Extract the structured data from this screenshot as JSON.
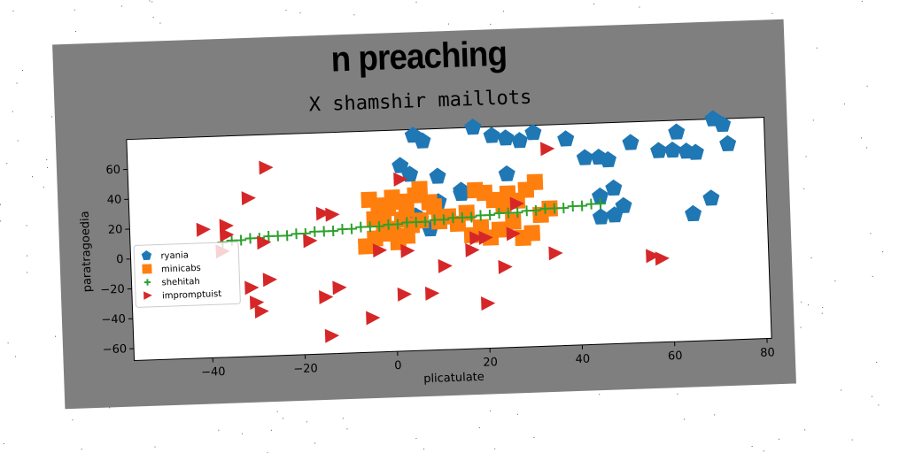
{
  "colors": {
    "ryania": "#1f77b4",
    "minicabs": "#ff7f0e",
    "shehitah": "#2ca02c",
    "impromptuist": "#d62728",
    "card": "#7f7f7f"
  },
  "chart_data": {
    "type": "scatter",
    "title": "n preaching",
    "subtitle": "X shamshir maillots",
    "xlabel": "plicatulate",
    "ylabel": "paratragoedia",
    "xlim": [
      -57,
      81
    ],
    "ylim": [
      -68,
      80
    ],
    "xticks": [
      -40,
      -20,
      0,
      20,
      40,
      60,
      80
    ],
    "yticks": [
      -60,
      -40,
      -20,
      0,
      20,
      40,
      60
    ],
    "xtick_labels": [
      "−40",
      "−20",
      "0",
      "20",
      "40",
      "60",
      "80"
    ],
    "ytick_labels": [
      "−60",
      "−40",
      "−20",
      "0",
      "20",
      "40",
      "60"
    ],
    "grid": false,
    "legend_position": "center-left",
    "series": [
      {
        "name": "ryania",
        "marker": "pentagon",
        "points": [
          [
            2,
            56
          ],
          [
            4,
            50
          ],
          [
            5,
            76
          ],
          [
            7,
            72
          ],
          [
            10,
            48
          ],
          [
            15,
            38
          ],
          [
            18,
            80
          ],
          [
            22,
            74
          ],
          [
            25,
            72
          ],
          [
            25,
            48
          ],
          [
            28,
            70
          ],
          [
            31,
            75
          ],
          [
            38,
            70
          ],
          [
            42,
            57
          ],
          [
            45,
            57
          ],
          [
            47,
            55
          ],
          [
            48,
            36
          ],
          [
            45,
            31
          ],
          [
            45,
            17
          ],
          [
            48,
            18
          ],
          [
            50,
            24
          ],
          [
            52,
            66
          ],
          [
            58,
            60
          ],
          [
            62,
            72
          ],
          [
            61,
            60
          ],
          [
            64,
            59
          ],
          [
            66,
            58
          ],
          [
            70,
            80
          ],
          [
            72,
            76
          ],
          [
            73,
            63
          ],
          [
            69,
            27
          ],
          [
            65,
            17
          ],
          [
            3,
            30
          ],
          [
            5,
            22
          ],
          [
            8,
            13
          ],
          [
            6,
            20
          ],
          [
            10,
            31
          ],
          [
            15,
            36
          ]
        ]
      },
      {
        "name": "minicabs",
        "marker": "square",
        "points": [
          [
            -5,
            34
          ],
          [
            -3,
            30
          ],
          [
            -1,
            28
          ],
          [
            0,
            35
          ],
          [
            2,
            32
          ],
          [
            3,
            27
          ],
          [
            5,
            36
          ],
          [
            6,
            40
          ],
          [
            8,
            31
          ],
          [
            9,
            28
          ],
          [
            -4,
            21
          ],
          [
            -2,
            18
          ],
          [
            0,
            14
          ],
          [
            2,
            20
          ],
          [
            4,
            16
          ],
          [
            6,
            19
          ],
          [
            -6,
            3
          ],
          [
            -4,
            8
          ],
          [
            -2,
            11
          ],
          [
            1,
            5
          ],
          [
            3,
            9
          ],
          [
            10,
            18
          ],
          [
            12,
            21
          ],
          [
            14,
            16
          ],
          [
            16,
            23
          ],
          [
            18,
            38
          ],
          [
            20,
            36
          ],
          [
            22,
            31
          ],
          [
            24,
            27
          ],
          [
            25,
            35
          ],
          [
            27,
            30
          ],
          [
            29,
            37
          ],
          [
            31,
            42
          ],
          [
            17,
            8
          ],
          [
            19,
            13
          ],
          [
            21,
            6
          ],
          [
            23,
            11
          ],
          [
            26,
            16
          ],
          [
            28,
            5
          ],
          [
            30,
            8
          ],
          [
            32,
            20
          ],
          [
            34,
            24
          ]
        ]
      },
      {
        "name": "shehitah",
        "marker": "plus",
        "points": [
          [
            -37,
            9
          ],
          [
            -35,
            10
          ],
          [
            -33,
            10
          ],
          [
            -31,
            11
          ],
          [
            -29,
            11
          ],
          [
            -27,
            12
          ],
          [
            -25,
            12
          ],
          [
            -23,
            12
          ],
          [
            -21,
            13
          ],
          [
            -19,
            13
          ],
          [
            -17,
            14
          ],
          [
            -15,
            14
          ],
          [
            -13,
            14
          ],
          [
            -11,
            15
          ],
          [
            -9,
            15
          ],
          [
            -7,
            16
          ],
          [
            -5,
            16
          ],
          [
            -3,
            16
          ],
          [
            -1,
            17
          ],
          [
            1,
            17
          ],
          [
            3,
            18
          ],
          [
            5,
            18
          ],
          [
            7,
            18
          ],
          [
            9,
            19
          ],
          [
            11,
            19
          ],
          [
            13,
            20
          ],
          [
            15,
            20
          ],
          [
            17,
            20
          ],
          [
            19,
            21
          ],
          [
            21,
            21
          ],
          [
            23,
            22
          ],
          [
            25,
            22
          ],
          [
            27,
            22
          ],
          [
            29,
            23
          ],
          [
            31,
            23
          ],
          [
            33,
            24
          ],
          [
            35,
            24
          ],
          [
            37,
            24
          ],
          [
            39,
            25
          ],
          [
            41,
            25
          ],
          [
            43,
            26
          ],
          [
            45,
            26
          ]
        ]
      },
      {
        "name": "impromptuist",
        "marker": "triangle-right",
        "points": [
          [
            -27,
            58
          ],
          [
            -31,
            38
          ],
          [
            -15,
            26
          ],
          [
            -13,
            25
          ],
          [
            -36,
            20
          ],
          [
            -41,
            18
          ],
          [
            -36,
            14
          ],
          [
            -28,
            8
          ],
          [
            -18,
            8
          ],
          [
            -37,
            3
          ],
          [
            -31,
            -22
          ],
          [
            -27,
            -17
          ],
          [
            -12,
            -24
          ],
          [
            -15,
            -30
          ],
          [
            -30,
            -32
          ],
          [
            -29,
            -38
          ],
          [
            -14,
            -56
          ],
          [
            -5,
            -45
          ],
          [
            2,
            -30
          ],
          [
            8,
            -30
          ],
          [
            11,
            -12
          ],
          [
            17,
            -2
          ],
          [
            18,
            6
          ],
          [
            20,
            6
          ],
          [
            26,
            8
          ],
          [
            27,
            28
          ],
          [
            24,
            -14
          ],
          [
            35,
            -6
          ],
          [
            34,
            64
          ],
          [
            2,
            47
          ],
          [
            -3,
            0
          ],
          [
            3,
            -1
          ],
          [
            56,
            -10
          ],
          [
            58,
            -12
          ],
          [
            20,
            -38
          ]
        ]
      }
    ]
  }
}
